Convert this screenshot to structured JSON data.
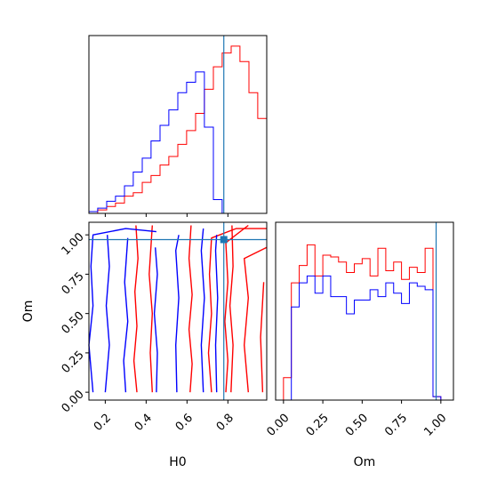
{
  "chart_data": {
    "type": "corner",
    "parameters": [
      "H0",
      "Om"
    ],
    "truth": {
      "H0": 0.78,
      "Om": 0.97
    },
    "colors": {
      "red": "#ff0000",
      "blue": "#0000ff",
      "truth": "#1f77b4"
    },
    "xlabel_h0": "H0",
    "xlabel_om": "Om",
    "ylabel_om": "Om",
    "h0_ticks": [
      "0.2",
      "0.4",
      "0.6",
      "0.8"
    ],
    "h0_tick_values": [
      0.2,
      0.4,
      0.6,
      0.8
    ],
    "om_ticks": [
      "0.00",
      "0.25",
      "0.50",
      "0.75",
      "1.00"
    ],
    "om_tick_values": [
      0.0,
      0.25,
      0.5,
      0.75,
      1.0
    ],
    "h0_range": [
      0.12,
      0.99
    ],
    "om_range": [
      -0.05,
      1.08
    ],
    "h0_hist": {
      "bin_edges": [
        0.12,
        0.163,
        0.207,
        0.25,
        0.294,
        0.337,
        0.381,
        0.424,
        0.468,
        0.511,
        0.555,
        0.598,
        0.642,
        0.685,
        0.729,
        0.772,
        0.816,
        0.859,
        0.903,
        0.946,
        0.99
      ],
      "series": [
        {
          "color": "red",
          "values": [
            0,
            0.02,
            0.04,
            0.06,
            0.1,
            0.12,
            0.18,
            0.22,
            0.28,
            0.33,
            0.4,
            0.48,
            0.58,
            0.72,
            0.85,
            0.93,
            0.97,
            0.88,
            0.7,
            0.55
          ]
        },
        {
          "color": "blue",
          "values": [
            0.01,
            0.03,
            0.07,
            0.1,
            0.16,
            0.24,
            0.32,
            0.42,
            0.51,
            0.6,
            0.7,
            0.76,
            0.82,
            0.5,
            0.08,
            0,
            0,
            0,
            0,
            0
          ]
        }
      ]
    },
    "om_hist": {
      "bin_edges": [
        0.0,
        0.05,
        0.1,
        0.15,
        0.2,
        0.25,
        0.3,
        0.35,
        0.4,
        0.45,
        0.5,
        0.55,
        0.6,
        0.65,
        0.7,
        0.75,
        0.8,
        0.85,
        0.9,
        0.95,
        1.0
      ],
      "series": [
        {
          "color": "red",
          "values": [
            0.13,
            0.68,
            0.78,
            0.9,
            0.72,
            0.84,
            0.83,
            0.8,
            0.74,
            0.79,
            0.82,
            0.72,
            0.88,
            0.75,
            0.8,
            0.7,
            0.77,
            0.74,
            0.88,
            0.02
          ]
        },
        {
          "color": "blue",
          "values": [
            0.0,
            0.54,
            0.68,
            0.72,
            0.62,
            0.72,
            0.6,
            0.6,
            0.5,
            0.58,
            0.58,
            0.64,
            0.6,
            0.68,
            0.62,
            0.56,
            0.68,
            0.66,
            0.64,
            0.02
          ]
        }
      ]
    },
    "contours": [
      {
        "color": "red",
        "paths": [
          [
            [
              0.355,
              0.0
            ],
            [
              0.34,
              0.2
            ],
            [
              0.355,
              0.42
            ],
            [
              0.345,
              0.64
            ],
            [
              0.36,
              0.85
            ],
            [
              0.35,
              1.06
            ]
          ],
          [
            [
              0.43,
              0.0
            ],
            [
              0.42,
              0.25
            ],
            [
              0.43,
              0.5
            ],
            [
              0.415,
              0.75
            ],
            [
              0.43,
              1.06
            ]
          ],
          [
            [
              0.62,
              1.06
            ],
            [
              0.61,
              0.85
            ],
            [
              0.625,
              0.62
            ],
            [
              0.61,
              0.4
            ],
            [
              0.625,
              0.18
            ],
            [
              0.615,
              0.0
            ]
          ],
          [
            [
              0.82,
              1.06
            ],
            [
              0.825,
              0.8
            ],
            [
              0.81,
              0.55
            ],
            [
              0.825,
              0.3
            ],
            [
              0.815,
              0.0
            ]
          ],
          [
            [
              0.72,
              0.0
            ],
            [
              0.705,
              0.25
            ],
            [
              0.72,
              0.5
            ],
            [
              0.71,
              0.75
            ],
            [
              0.72,
              0.98
            ],
            [
              0.84,
              1.04
            ],
            [
              0.99,
              1.04
            ]
          ],
          [
            [
              0.79,
              0.0
            ],
            [
              0.8,
              0.2
            ],
            [
              0.785,
              0.45
            ],
            [
              0.8,
              0.7
            ],
            [
              0.79,
              0.95
            ],
            [
              0.9,
              1.06
            ]
          ],
          [
            [
              0.9,
              0.0
            ],
            [
              0.88,
              0.3
            ],
            [
              0.9,
              0.6
            ],
            [
              0.88,
              0.85
            ],
            [
              0.99,
              0.92
            ]
          ],
          [
            [
              0.97,
              0.0
            ],
            [
              0.96,
              0.35
            ],
            [
              0.975,
              0.7
            ]
          ]
        ]
      },
      {
        "color": "blue",
        "paths": [
          [
            [
              0.14,
              0.0
            ],
            [
              0.12,
              0.3
            ],
            [
              0.14,
              0.55
            ],
            [
              0.13,
              0.8
            ],
            [
              0.14,
              1.0
            ],
            [
              0.3,
              1.04
            ],
            [
              0.45,
              1.02
            ]
          ],
          [
            [
              0.2,
              0.0
            ],
            [
              0.22,
              0.3
            ],
            [
              0.205,
              0.55
            ],
            [
              0.22,
              0.8
            ],
            [
              0.21,
              1.0
            ]
          ],
          [
            [
              0.3,
              0.0
            ],
            [
              0.29,
              0.2
            ],
            [
              0.31,
              0.45
            ],
            [
              0.295,
              0.7
            ],
            [
              0.31,
              0.98
            ]
          ],
          [
            [
              0.45,
              0.0
            ],
            [
              0.455,
              0.25
            ],
            [
              0.44,
              0.5
            ],
            [
              0.455,
              0.75
            ],
            [
              0.445,
              0.92
            ]
          ],
          [
            [
              0.55,
              0.0
            ],
            [
              0.545,
              0.3
            ],
            [
              0.56,
              0.6
            ],
            [
              0.545,
              0.9
            ],
            [
              0.56,
              1.0
            ]
          ],
          [
            [
              0.68,
              0.0
            ],
            [
              0.67,
              0.3
            ],
            [
              0.685,
              0.6
            ],
            [
              0.67,
              0.9
            ],
            [
              0.68,
              1.04
            ]
          ],
          [
            [
              0.745,
              0.0
            ],
            [
              0.74,
              0.3
            ],
            [
              0.75,
              0.6
            ],
            [
              0.74,
              0.9
            ],
            [
              0.745,
              1.0
            ]
          ]
        ]
      }
    ]
  }
}
